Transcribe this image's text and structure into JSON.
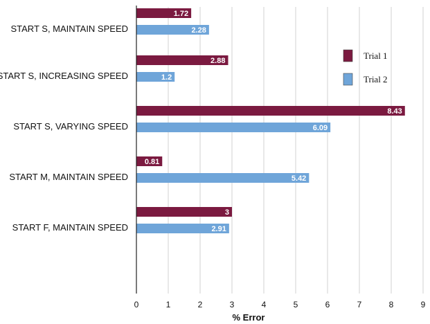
{
  "chart_data": {
    "type": "bar",
    "orientation": "horizontal",
    "categories": [
      "START S, MAINTAIN SPEED",
      "START S, INCREASING SPEED",
      "START S, VARYING SPEED",
      "START M, MAINTAIN SPEED",
      "START F, MAINTAIN SPEED"
    ],
    "series": [
      {
        "name": "Trial 1",
        "color": "#7b1a40",
        "values": [
          1.72,
          2.88,
          8.43,
          0.81,
          3
        ],
        "labels": [
          "1.72",
          "2.88",
          "8.43",
          "0.81",
          "3"
        ]
      },
      {
        "name": "Trial 2",
        "color": "#6fa5d9",
        "values": [
          2.28,
          1.2,
          6.09,
          5.42,
          2.91
        ],
        "labels": [
          "2.28",
          "1.2",
          "6.09",
          "5.42",
          "2.91"
        ]
      }
    ],
    "xlabel": "% Error",
    "xlim": [
      0,
      9
    ],
    "xticks": [
      "0",
      "1",
      "2",
      "3",
      "4",
      "5",
      "6",
      "7",
      "8",
      "9"
    ],
    "grid": "vertical",
    "legend": "top-right"
  }
}
